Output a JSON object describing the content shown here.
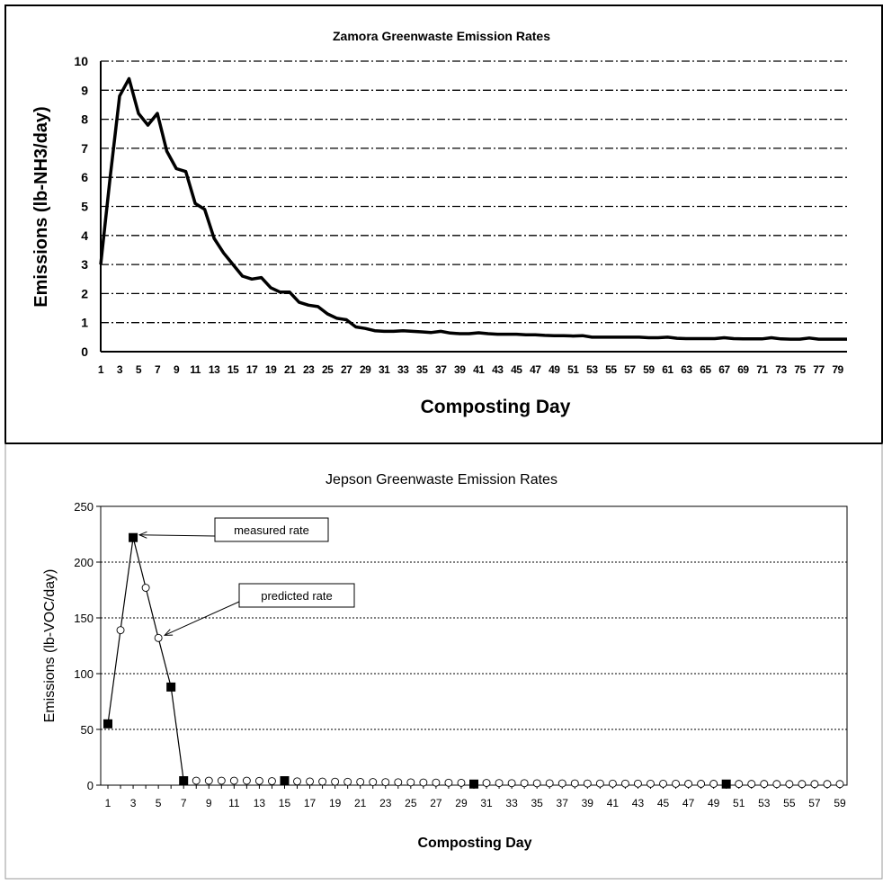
{
  "chart_data": [
    {
      "type": "line",
      "title": "Zamora Greenwaste Emission Rates",
      "xlabel": "Composting Day",
      "ylabel": "Emissions (lb-NH3/day)",
      "xlim": [
        1,
        80
      ],
      "ylim": [
        0,
        10
      ],
      "y_ticks": [
        0,
        1,
        2,
        3,
        4,
        5,
        6,
        7,
        8,
        9,
        10
      ],
      "x_tick_labels": [
        "1",
        "3",
        "5",
        "7",
        "9",
        "11",
        "13",
        "15",
        "17",
        "19",
        "21",
        "23",
        "25",
        "27",
        "29",
        "31",
        "33",
        "35",
        "37",
        "39",
        "41",
        "43",
        "45",
        "47",
        "49",
        "51",
        "53",
        "55",
        "57",
        "59",
        "61",
        "63",
        "65",
        "67",
        "69",
        "71",
        "73",
        "75",
        "77",
        "79"
      ],
      "grid": "horizontal dashed",
      "legend": "none",
      "series": [
        {
          "x": [
            1,
            2,
            3,
            4,
            5,
            6,
            7,
            8,
            9,
            10,
            11,
            12,
            13,
            14,
            15,
            16,
            17,
            18,
            19,
            20,
            21,
            22,
            23,
            24,
            25,
            26,
            27,
            28,
            29,
            30,
            31,
            32,
            33,
            34,
            35,
            36,
            37,
            38,
            39,
            40,
            41,
            42,
            43,
            44,
            45,
            46,
            47,
            48,
            49,
            50,
            51,
            52,
            53,
            54,
            55,
            56,
            57,
            58,
            59,
            60,
            61,
            62,
            63,
            64,
            65,
            66,
            67,
            68,
            69,
            70,
            71,
            72,
            73,
            74,
            75,
            76,
            77,
            78,
            79,
            80
          ],
          "values": [
            3.0,
            6.0,
            8.8,
            9.4,
            8.2,
            7.8,
            8.2,
            6.9,
            6.3,
            6.2,
            5.1,
            4.9,
            3.9,
            3.4,
            3.0,
            2.6,
            2.5,
            2.55,
            2.2,
            2.05,
            2.05,
            1.7,
            1.6,
            1.55,
            1.3,
            1.15,
            1.1,
            0.85,
            0.8,
            0.72,
            0.7,
            0.7,
            0.72,
            0.7,
            0.68,
            0.66,
            0.7,
            0.64,
            0.62,
            0.62,
            0.65,
            0.62,
            0.6,
            0.6,
            0.6,
            0.58,
            0.58,
            0.56,
            0.55,
            0.55,
            0.54,
            0.55,
            0.5,
            0.5,
            0.5,
            0.5,
            0.5,
            0.5,
            0.48,
            0.48,
            0.5,
            0.46,
            0.45,
            0.45,
            0.45,
            0.45,
            0.48,
            0.45,
            0.44,
            0.44,
            0.44,
            0.48,
            0.44,
            0.43,
            0.43,
            0.47,
            0.43,
            0.43,
            0.43,
            0.43
          ]
        }
      ]
    },
    {
      "type": "line",
      "title": "Jepson Greenwaste Emission Rates",
      "xlabel": "Composting Day",
      "ylabel": "Emissions (lb-VOC/day)",
      "xlim": [
        1,
        59
      ],
      "ylim": [
        0,
        250
      ],
      "y_ticks": [
        0,
        50,
        100,
        150,
        200,
        250
      ],
      "x_tick_labels": [
        "1",
        "3",
        "5",
        "7",
        "9",
        "11",
        "13",
        "15",
        "17",
        "19",
        "21",
        "23",
        "25",
        "27",
        "29",
        "31",
        "33",
        "35",
        "37",
        "39",
        "41",
        "43",
        "45",
        "47",
        "49",
        "51",
        "53",
        "55",
        "57",
        "59"
      ],
      "grid": "horizontal dotted",
      "legend": "none",
      "series": [
        {
          "x": [
            1,
            2,
            3,
            4,
            5,
            6,
            7
          ],
          "values": [
            55,
            139,
            222,
            177,
            132,
            88,
            4
          ]
        }
      ],
      "measured_points": {
        "x": [
          1,
          3,
          6,
          7,
          15,
          30,
          50
        ],
        "values": [
          55,
          222,
          88,
          4,
          4,
          1,
          1
        ]
      },
      "predicted_points": {
        "x": [
          2,
          4,
          5,
          8,
          9,
          10,
          11,
          12,
          13,
          14,
          16,
          17,
          18,
          19,
          20,
          21,
          22,
          23,
          24,
          25,
          26,
          27,
          28,
          29,
          31,
          32,
          33,
          34,
          35,
          36,
          37,
          38,
          39,
          40,
          41,
          42,
          43,
          44,
          45,
          46,
          47,
          48,
          49,
          51,
          52,
          53,
          54,
          55,
          56,
          57,
          58,
          59
        ],
        "values": [
          139,
          177,
          132,
          4,
          4,
          4,
          4,
          4,
          3.8,
          3.6,
          3.4,
          3.3,
          3.2,
          3.1,
          3,
          2.9,
          2.8,
          2.7,
          2.6,
          2.5,
          2.4,
          2.3,
          2.2,
          2.1,
          2,
          1.9,
          1.8,
          1.8,
          1.7,
          1.7,
          1.6,
          1.6,
          1.5,
          1.5,
          1.4,
          1.4,
          1.4,
          1.3,
          1.3,
          1.3,
          1.2,
          1.2,
          1.2,
          1.1,
          1.1,
          1.1,
          1,
          1,
          1,
          1,
          1,
          1
        ]
      },
      "annotations": [
        {
          "text": "measured rate",
          "point_x": 3,
          "point_y": 222
        },
        {
          "text": "predicted rate",
          "point_x": 5,
          "point_y": 132
        }
      ]
    }
  ]
}
